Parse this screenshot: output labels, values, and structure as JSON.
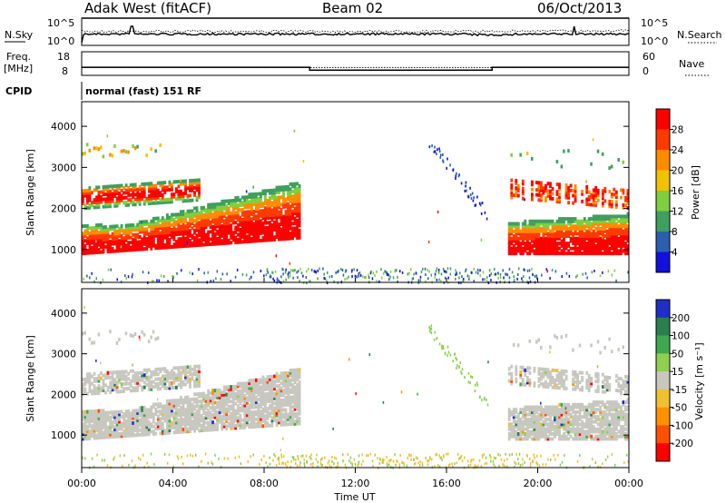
{
  "header": {
    "station": "Adak West (fitACF)",
    "beam": "Beam 02",
    "date": "06/Oct/2013"
  },
  "noise_panel": {
    "left_label": "N.Sky",
    "right_label": "N.Search",
    "left_ticks": [
      "10^5",
      "10^0"
    ],
    "right_ticks": [
      "10^5",
      "10^0"
    ]
  },
  "freq_panel": {
    "left_label_1": "Freq.",
    "left_label_2": "[MHz]",
    "right_label": "Nave",
    "left_ticks": [
      "18",
      "8"
    ],
    "right_ticks": [
      "60",
      "0"
    ],
    "freq_steps": [
      {
        "from_hour": 0,
        "to_hour": 10,
        "freq_mhz": 11.4
      },
      {
        "from_hour": 10,
        "to_hour": 18,
        "freq_mhz": 10.2
      },
      {
        "from_hour": 18,
        "to_hour": 24,
        "freq_mhz": 11.4
      }
    ],
    "nave_level": 20
  },
  "cpid": {
    "label": "CPID",
    "mode": "normal (fast) 151 RF"
  },
  "chart_data": [
    {
      "type": "heatmap",
      "name": "power",
      "ylabel": "Slant Range [km]",
      "yticks": [
        "1000",
        "2000",
        "3000",
        "4000"
      ],
      "ylim": [
        200,
        4600
      ],
      "xlim": [
        0,
        24
      ],
      "colorbar_label": "Power [dB]",
      "colorbar_ticks": [
        "28",
        "24",
        "20",
        "16",
        "12",
        "8",
        "4"
      ],
      "colorbar_colors": [
        "#ff0000",
        "#ff3a00",
        "#ff8c00",
        "#f2c200",
        "#7fcf3f",
        "#3f9f5f",
        "#2a5faf",
        "#1010e0"
      ]
    },
    {
      "type": "heatmap",
      "name": "velocity",
      "ylabel": "Slant Range [km]",
      "yticks": [
        "1000",
        "2000",
        "3000",
        "4000"
      ],
      "ylim": [
        200,
        4600
      ],
      "xlim": [
        0,
        24
      ],
      "colorbar_label": "Velocity [m s⁻¹]",
      "colorbar_ticks": [
        "200",
        "100",
        "50",
        "15",
        "-15",
        "-50",
        "-100",
        "-200"
      ],
      "colorbar_colors": [
        "#1e2fc8",
        "#2a7f4f",
        "#3fa84f",
        "#8fd04f",
        "#c8c8c0",
        "#f0c030",
        "#ff9000",
        "#ff5000",
        "#ff0000"
      ]
    }
  ],
  "xaxis": {
    "label": "Time UT",
    "ticks": [
      "00:00",
      "04:00",
      "08:00",
      "12:00",
      "16:00",
      "20:00",
      "00:00"
    ]
  },
  "colors": {
    "gray_scatter": "#c8c8c0",
    "axis": "#000000"
  }
}
